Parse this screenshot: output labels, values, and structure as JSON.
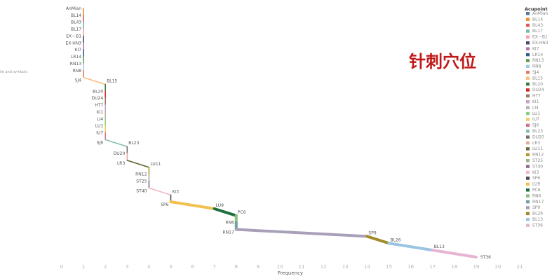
{
  "annotation_cn": "针刺穴位",
  "side_note": "ile and symbols",
  "chart_data": {
    "type": "line",
    "xlabel": "Frequency",
    "x_ticks": [
      "0",
      "1",
      "2",
      "3",
      "4",
      "5",
      "6",
      "7",
      "8",
      "9",
      "10",
      "11",
      "12",
      "13",
      "14",
      "15",
      "16",
      "17",
      "18",
      "19",
      "20",
      "21"
    ],
    "xlim": [
      0,
      21
    ],
    "legend": {
      "title": "Acupoint",
      "placement": "right"
    },
    "points": [
      {
        "name": "AnMian",
        "x": 1,
        "color": "#4e79a7"
      },
      {
        "name": "BL14",
        "x": 1,
        "color": "#f28e2b"
      },
      {
        "name": "BL43",
        "x": 1,
        "color": "#e15759"
      },
      {
        "name": "BL17",
        "x": 1,
        "color": "#76b7b2"
      },
      {
        "name": "EX－B1",
        "x": 1,
        "color": "#ff9da7"
      },
      {
        "name": "EX-HN3",
        "x": 1,
        "color": "#4b4b6b"
      },
      {
        "name": "KI7",
        "x": 1,
        "color": "#b07aa1"
      },
      {
        "name": "LR14",
        "x": 1,
        "color": "#2f5f8a"
      },
      {
        "name": "RN13",
        "x": 1,
        "color": "#59a14f"
      },
      {
        "name": "RN8",
        "x": 1,
        "color": "#a0cbe8"
      },
      {
        "name": "SJ4",
        "x": 1,
        "color": "#e07a5f"
      },
      {
        "name": "BL15",
        "x": 2,
        "color": "#ffbe7d"
      },
      {
        "name": "BL20",
        "x": 2,
        "color": "#3a7d44"
      },
      {
        "name": "DU24",
        "x": 2,
        "color": "#d62728"
      },
      {
        "name": "HT7",
        "x": 2,
        "color": "#9d7660"
      },
      {
        "name": "KI1",
        "x": 2,
        "color": "#c9a0c9"
      },
      {
        "name": "LI4",
        "x": 2,
        "color": "#bab0ac"
      },
      {
        "name": "LU1",
        "x": 2,
        "color": "#8cd17d"
      },
      {
        "name": "IU7",
        "x": 2,
        "color": "#f1ce63"
      },
      {
        "name": "SJ6",
        "x": 2,
        "color": "#d37295"
      },
      {
        "name": "BL23",
        "x": 3,
        "color": "#86bcb6"
      },
      {
        "name": "DU20",
        "x": 3,
        "color": "#79706e"
      },
      {
        "name": "LR3",
        "x": 3,
        "color": "#e8a9a0"
      },
      {
        "name": "LU11",
        "x": 4,
        "color": "#6b6b3a"
      },
      {
        "name": "RN12",
        "x": 4,
        "color": "#b6992d"
      },
      {
        "name": "ST25",
        "x": 4,
        "color": "#a3b18a"
      },
      {
        "name": "ST40",
        "x": 4,
        "color": "#8e6c8a"
      },
      {
        "name": "KI3",
        "x": 5,
        "color": "#f4b6c2"
      },
      {
        "name": "SP6",
        "x": 5,
        "color": "#4a4a4a"
      },
      {
        "name": "LU9",
        "x": 7,
        "color": "#f2c14e"
      },
      {
        "name": "PC6",
        "x": 8,
        "color": "#1f6f3f"
      },
      {
        "name": "RN6",
        "x": 8,
        "color": "#8fbf7f"
      },
      {
        "name": "RN17",
        "x": 8,
        "color": "#6fa3a0"
      },
      {
        "name": "SP9",
        "x": 14,
        "color": "#a8a0b8"
      },
      {
        "name": "BL26",
        "x": 15,
        "color": "#a08a2a"
      },
      {
        "name": "BL13",
        "x": 17,
        "color": "#9bc4e2"
      },
      {
        "name": "ST36",
        "x": 19,
        "color": "#e8b4d4"
      }
    ]
  }
}
